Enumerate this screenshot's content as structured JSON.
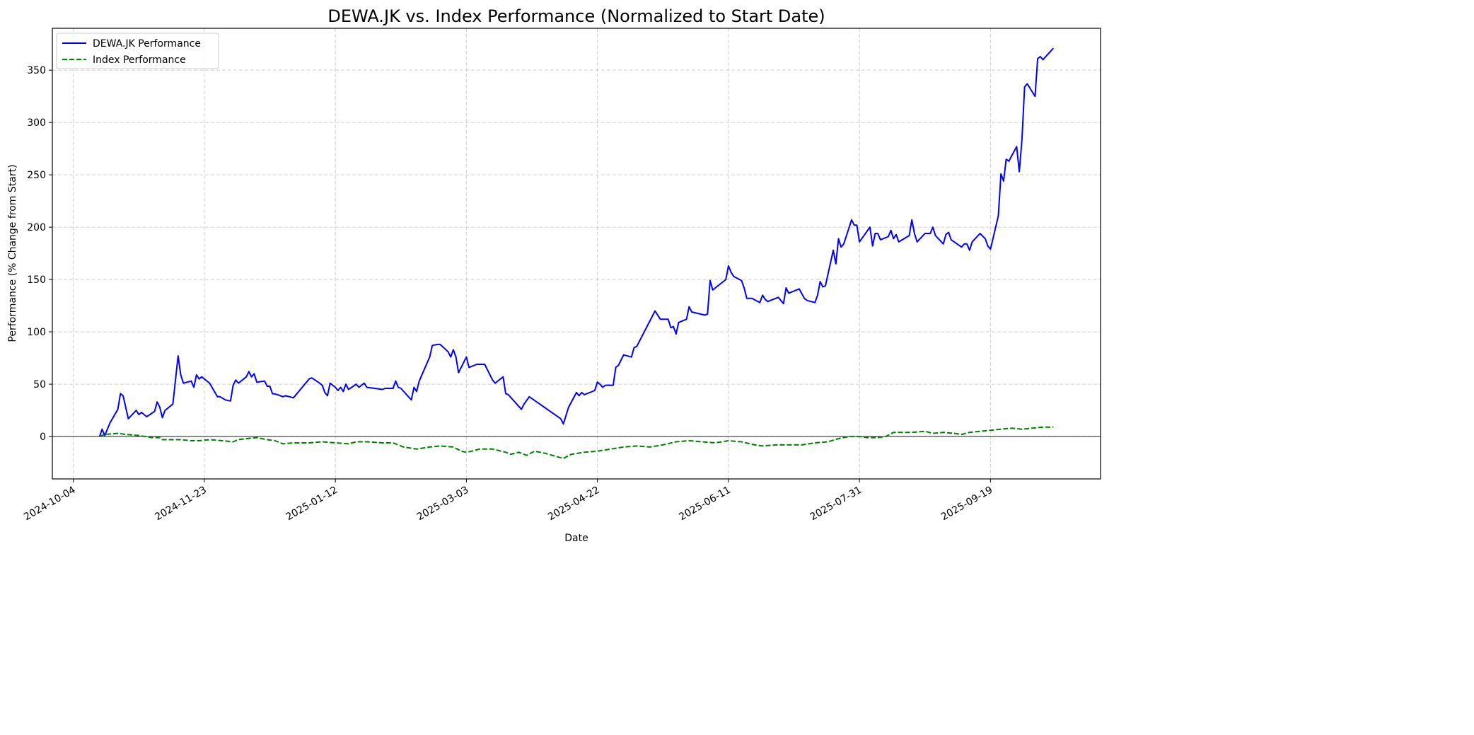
{
  "chart_data": {
    "type": "line",
    "title": "DEWA.JK vs. Index Performance (Normalized to Start Date)",
    "xlabel": "Date",
    "ylabel": "Performance (% Change from Start)",
    "x_unit": "days since 2024-10-04",
    "xlim": [
      -8,
      392
    ],
    "ylim": [
      -40.5,
      390
    ],
    "x_ticks": [
      {
        "day": 0,
        "label": "2024-10-04"
      },
      {
        "day": 50,
        "label": "2024-11-23"
      },
      {
        "day": 100,
        "label": "2025-01-12"
      },
      {
        "day": 150,
        "label": "2025-03-03"
      },
      {
        "day": 200,
        "label": "2025-04-22"
      },
      {
        "day": 250,
        "label": "2025-06-11"
      },
      {
        "day": 300,
        "label": "2025-07-31"
      },
      {
        "day": 350,
        "label": "2025-09-19"
      }
    ],
    "y_ticks": [
      0,
      50,
      100,
      150,
      200,
      250,
      300,
      350
    ],
    "grid": true,
    "reference_line": 0,
    "legend_position": "top-left",
    "series": [
      {
        "name": "DEWA.JK Performance",
        "color": "#0000ff",
        "style": "solid",
        "points": [
          [
            10,
            0
          ],
          [
            11,
            7
          ],
          [
            12,
            1
          ],
          [
            14,
            13
          ],
          [
            17,
            26
          ],
          [
            18,
            41
          ],
          [
            19,
            39
          ],
          [
            21,
            17
          ],
          [
            24,
            25
          ],
          [
            25,
            21
          ],
          [
            26,
            23
          ],
          [
            28,
            19
          ],
          [
            31,
            24
          ],
          [
            32,
            33
          ],
          [
            33,
            28
          ],
          [
            34,
            18
          ],
          [
            35,
            25
          ],
          [
            38,
            31
          ],
          [
            40,
            77
          ],
          [
            41,
            59
          ],
          [
            42,
            51
          ],
          [
            45,
            53
          ],
          [
            46,
            47
          ],
          [
            47,
            59
          ],
          [
            48,
            55
          ],
          [
            49,
            57
          ],
          [
            52,
            51
          ],
          [
            55,
            38
          ],
          [
            56,
            38
          ],
          [
            58,
            35
          ],
          [
            60,
            34
          ],
          [
            61,
            49
          ],
          [
            62,
            54
          ],
          [
            63,
            51
          ],
          [
            66,
            57
          ],
          [
            67,
            62
          ],
          [
            68,
            57
          ],
          [
            69,
            60
          ],
          [
            70,
            52
          ],
          [
            73,
            53
          ],
          [
            74,
            48
          ],
          [
            75,
            48
          ],
          [
            76,
            41
          ],
          [
            78,
            40
          ],
          [
            80,
            38
          ],
          [
            81,
            39
          ],
          [
            84,
            37
          ],
          [
            87,
            46
          ],
          [
            90,
            55
          ],
          [
            91,
            56
          ],
          [
            94,
            51
          ],
          [
            95,
            49
          ],
          [
            96,
            42
          ],
          [
            97,
            39
          ],
          [
            98,
            51
          ],
          [
            100,
            47
          ],
          [
            101,
            44
          ],
          [
            102,
            47
          ],
          [
            103,
            43
          ],
          [
            104,
            50
          ],
          [
            105,
            45
          ],
          [
            108,
            50
          ],
          [
            109,
            47
          ],
          [
            111,
            51
          ],
          [
            112,
            47
          ],
          [
            118,
            45
          ],
          [
            119,
            46
          ],
          [
            122,
            46
          ],
          [
            123,
            53
          ],
          [
            124,
            47
          ],
          [
            125,
            46
          ],
          [
            129,
            35
          ],
          [
            130,
            47
          ],
          [
            131,
            43
          ],
          [
            132,
            53
          ],
          [
            136,
            76
          ],
          [
            137,
            87
          ],
          [
            139,
            88
          ],
          [
            140,
            88
          ],
          [
            143,
            81
          ],
          [
            144,
            76
          ],
          [
            145,
            83
          ],
          [
            146,
            76
          ],
          [
            147,
            61
          ],
          [
            150,
            76
          ],
          [
            151,
            66
          ],
          [
            154,
            69
          ],
          [
            157,
            69
          ],
          [
            158,
            64
          ],
          [
            160,
            54
          ],
          [
            161,
            51
          ],
          [
            164,
            57
          ],
          [
            165,
            41
          ],
          [
            166,
            40
          ],
          [
            171,
            26
          ],
          [
            172,
            31
          ],
          [
            174,
            38
          ],
          [
            186,
            17
          ],
          [
            187,
            12
          ],
          [
            189,
            28
          ],
          [
            192,
            42
          ],
          [
            193,
            39
          ],
          [
            194,
            42
          ],
          [
            195,
            40
          ],
          [
            199,
            44
          ],
          [
            200,
            52
          ],
          [
            201,
            50
          ],
          [
            202,
            47
          ],
          [
            203,
            49
          ],
          [
            206,
            49
          ],
          [
            207,
            66
          ],
          [
            208,
            68
          ],
          [
            210,
            78
          ],
          [
            213,
            76
          ],
          [
            214,
            85
          ],
          [
            215,
            86
          ],
          [
            222,
            120
          ],
          [
            223,
            116
          ],
          [
            224,
            112
          ],
          [
            227,
            112
          ],
          [
            228,
            104
          ],
          [
            229,
            105
          ],
          [
            230,
            98
          ],
          [
            231,
            109
          ],
          [
            234,
            112
          ],
          [
            235,
            124
          ],
          [
            236,
            119
          ],
          [
            241,
            116
          ],
          [
            242,
            117
          ],
          [
            243,
            149
          ],
          [
            244,
            140
          ],
          [
            249,
            150
          ],
          [
            250,
            163
          ],
          [
            251,
            157
          ],
          [
            252,
            153
          ],
          [
            255,
            149
          ],
          [
            256,
            142
          ],
          [
            257,
            132
          ],
          [
            259,
            132
          ],
          [
            262,
            128
          ],
          [
            263,
            135
          ],
          [
            264,
            131
          ],
          [
            265,
            129
          ],
          [
            269,
            133
          ],
          [
            271,
            127
          ],
          [
            272,
            142
          ],
          [
            273,
            137
          ],
          [
            277,
            141
          ],
          [
            279,
            132
          ],
          [
            280,
            130
          ],
          [
            283,
            128
          ],
          [
            284,
            135
          ],
          [
            285,
            148
          ],
          [
            286,
            143
          ],
          [
            287,
            144
          ],
          [
            290,
            178
          ],
          [
            291,
            165
          ],
          [
            292,
            189
          ],
          [
            293,
            181
          ],
          [
            294,
            184
          ],
          [
            297,
            207
          ],
          [
            298,
            202
          ],
          [
            299,
            202
          ],
          [
            300,
            186
          ],
          [
            304,
            200
          ],
          [
            305,
            182
          ],
          [
            306,
            194
          ],
          [
            307,
            194
          ],
          [
            308,
            188
          ],
          [
            311,
            191
          ],
          [
            312,
            197
          ],
          [
            313,
            189
          ],
          [
            314,
            193
          ],
          [
            315,
            186
          ],
          [
            319,
            192
          ],
          [
            320,
            207
          ],
          [
            321,
            194
          ],
          [
            322,
            186
          ],
          [
            325,
            194
          ],
          [
            327,
            194
          ],
          [
            328,
            200
          ],
          [
            329,
            192
          ],
          [
            332,
            184
          ],
          [
            333,
            193
          ],
          [
            334,
            195
          ],
          [
            335,
            188
          ],
          [
            339,
            181
          ],
          [
            340,
            184
          ],
          [
            341,
            184
          ],
          [
            342,
            178
          ],
          [
            343,
            186
          ],
          [
            346,
            194
          ],
          [
            348,
            189
          ],
          [
            349,
            182
          ],
          [
            350,
            179
          ],
          [
            353,
            211
          ],
          [
            354,
            251
          ],
          [
            355,
            244
          ],
          [
            356,
            265
          ],
          [
            357,
            263
          ],
          [
            360,
            277
          ],
          [
            361,
            253
          ],
          [
            362,
            284
          ],
          [
            363,
            334
          ],
          [
            364,
            337
          ],
          [
            367,
            325
          ],
          [
            368,
            361
          ],
          [
            369,
            363
          ],
          [
            370,
            360
          ],
          [
            374,
            371
          ]
        ]
      },
      {
        "name": "Index Performance",
        "color": "#008000",
        "style": "dashed",
        "points": [
          [
            10,
            0
          ],
          [
            12,
            2
          ],
          [
            17,
            3
          ],
          [
            20,
            2
          ],
          [
            25,
            1
          ],
          [
            30,
            -1
          ],
          [
            33,
            -1
          ],
          [
            34,
            -3
          ],
          [
            38,
            -3
          ],
          [
            41,
            -3
          ],
          [
            45,
            -4
          ],
          [
            48,
            -4
          ],
          [
            52,
            -3
          ],
          [
            57,
            -4
          ],
          [
            61,
            -5
          ],
          [
            63,
            -3
          ],
          [
            66,
            -2
          ],
          [
            70,
            -1
          ],
          [
            74,
            -3
          ],
          [
            77,
            -4
          ],
          [
            80,
            -7
          ],
          [
            84,
            -6
          ],
          [
            90,
            -6
          ],
          [
            95,
            -5
          ],
          [
            100,
            -6
          ],
          [
            105,
            -7
          ],
          [
            108,
            -5
          ],
          [
            112,
            -5
          ],
          [
            118,
            -6
          ],
          [
            122,
            -6
          ],
          [
            126,
            -10
          ],
          [
            131,
            -12
          ],
          [
            136,
            -10
          ],
          [
            140,
            -9
          ],
          [
            145,
            -10
          ],
          [
            148,
            -14
          ],
          [
            150,
            -15
          ],
          [
            152,
            -14
          ],
          [
            155,
            -12
          ],
          [
            160,
            -12
          ],
          [
            165,
            -15
          ],
          [
            167,
            -17
          ],
          [
            170,
            -15
          ],
          [
            173,
            -18
          ],
          [
            176,
            -14
          ],
          [
            180,
            -16
          ],
          [
            187,
            -21
          ],
          [
            190,
            -17
          ],
          [
            195,
            -15
          ],
          [
            200,
            -14
          ],
          [
            205,
            -12
          ],
          [
            210,
            -10
          ],
          [
            215,
            -9
          ],
          [
            220,
            -10
          ],
          [
            225,
            -8
          ],
          [
            230,
            -5
          ],
          [
            235,
            -4
          ],
          [
            240,
            -5
          ],
          [
            245,
            -6
          ],
          [
            250,
            -4
          ],
          [
            255,
            -5
          ],
          [
            260,
            -8
          ],
          [
            263,
            -9
          ],
          [
            268,
            -8
          ],
          [
            273,
            -8
          ],
          [
            278,
            -8
          ],
          [
            283,
            -6
          ],
          [
            288,
            -5
          ],
          [
            292,
            -2
          ],
          [
            296,
            0
          ],
          [
            300,
            0
          ],
          [
            303,
            -1
          ],
          [
            307,
            -1
          ],
          [
            310,
            0
          ],
          [
            313,
            4
          ],
          [
            317,
            4
          ],
          [
            320,
            4
          ],
          [
            325,
            5
          ],
          [
            328,
            3
          ],
          [
            332,
            4
          ],
          [
            336,
            3
          ],
          [
            339,
            2
          ],
          [
            342,
            4
          ],
          [
            346,
            5
          ],
          [
            350,
            6
          ],
          [
            354,
            7
          ],
          [
            358,
            8
          ],
          [
            362,
            7
          ],
          [
            366,
            8
          ],
          [
            370,
            9
          ],
          [
            374,
            9
          ]
        ]
      }
    ]
  }
}
